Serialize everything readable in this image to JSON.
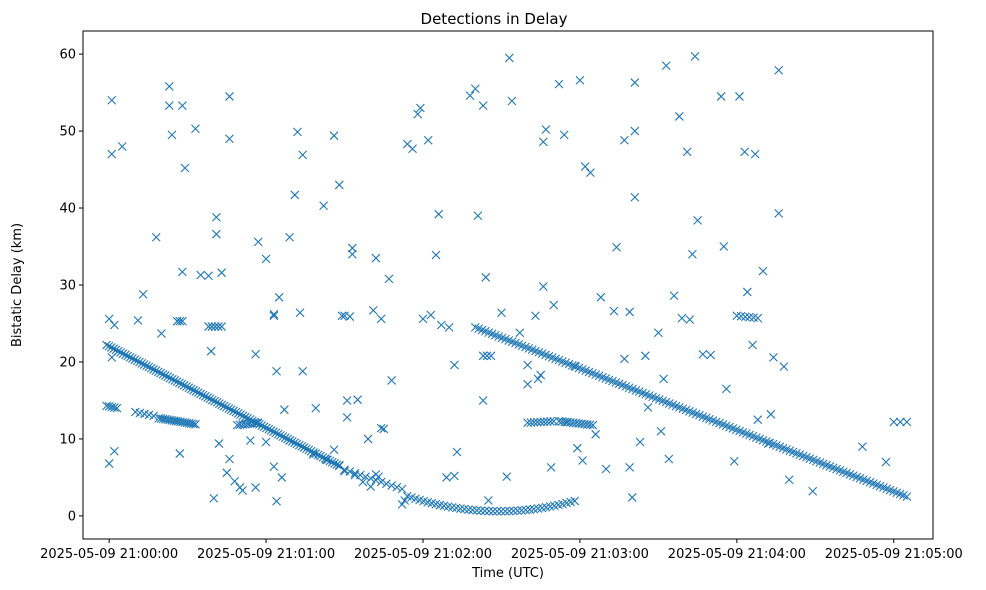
{
  "chart_data": {
    "type": "scatter",
    "title": "Detections in Delay",
    "xlabel": "Time (UTC)",
    "ylabel": "Bistatic Delay (km)",
    "marker": "x",
    "grid": false,
    "x_units": "seconds after 2025-05-09 21:00:00",
    "xlim": [
      -10,
      315
    ],
    "ylim": [
      -3,
      63
    ],
    "x_ticks": [
      {
        "value": 0,
        "label": "2025-05-09 21:00:00"
      },
      {
        "value": 60,
        "label": "2025-05-09 21:01:00"
      },
      {
        "value": 120,
        "label": "2025-05-09 21:02:00"
      },
      {
        "value": 180,
        "label": "2025-05-09 21:03:00"
      },
      {
        "value": 240,
        "label": "2025-05-09 21:04:00"
      },
      {
        "value": 300,
        "label": "2025-05-09 21:05:00"
      }
    ],
    "y_ticks": [
      {
        "value": 0,
        "label": "0"
      },
      {
        "value": 10,
        "label": "10"
      },
      {
        "value": 20,
        "label": "20"
      },
      {
        "value": 30,
        "label": "30"
      },
      {
        "value": 40,
        "label": "40"
      },
      {
        "value": 50,
        "label": "50"
      },
      {
        "value": 60,
        "label": "60"
      }
    ],
    "series": [
      {
        "name": "Detections",
        "color": "#1f77b4",
        "tracks": [
          {
            "kind": "line",
            "x_start": -1,
            "y_start": 22.2,
            "x_end": 88,
            "y_end": 6.5,
            "count": 100
          },
          {
            "kind": "line",
            "x_start": 90,
            "y_start": 6,
            "x_end": 112,
            "y_end": 3.5,
            "count": 12
          },
          {
            "kind": "curve",
            "x_start": 114,
            "x_end": 178,
            "x_mid": 149,
            "y_mid": 0.6,
            "k": 0.0016,
            "count": 42
          },
          {
            "kind": "line",
            "x_start": 140,
            "y_start": 24.5,
            "x_end": 305,
            "y_end": 2.5,
            "count": 130
          },
          {
            "kind": "line",
            "x_start": -1,
            "y_start": 14.3,
            "x_end": 3,
            "y_end": 14,
            "count": 5
          },
          {
            "kind": "line",
            "x_start": 10,
            "y_start": 13.5,
            "x_end": 17,
            "y_end": 13,
            "count": 5
          },
          {
            "kind": "line",
            "x_start": 19,
            "y_start": 12.7,
            "x_end": 33,
            "y_end": 11.9,
            "count": 18
          },
          {
            "kind": "line",
            "x_start": 49,
            "y_start": 11.8,
            "x_end": 57,
            "y_end": 12.1,
            "count": 9
          },
          {
            "kind": "line",
            "x_start": 160,
            "y_start": 12.1,
            "x_end": 170,
            "y_end": 12.3,
            "count": 9
          },
          {
            "kind": "line",
            "x_start": 172,
            "y_start": 12.3,
            "x_end": 185,
            "y_end": 11.8,
            "count": 13
          },
          {
            "kind": "line",
            "x_start": 26,
            "y_start": 25.3,
            "x_end": 28,
            "y_end": 25.3,
            "count": 3
          },
          {
            "kind": "line",
            "x_start": 38,
            "y_start": 24.6,
            "x_end": 43,
            "y_end": 24.6,
            "count": 5
          },
          {
            "kind": "line",
            "x_start": 143,
            "y_start": 20.8,
            "x_end": 146,
            "y_end": 20.8,
            "count": 3
          },
          {
            "kind": "line",
            "x_start": 240,
            "y_start": 26,
            "x_end": 248,
            "y_end": 25.7,
            "count": 6
          },
          {
            "kind": "line",
            "x_start": 300,
            "y_start": 12.2,
            "x_end": 305,
            "y_end": 12.2,
            "count": 3
          }
        ],
        "points": [
          [
            1,
            47
          ],
          [
            1,
            54
          ],
          [
            5,
            48
          ],
          [
            18,
            36.2
          ],
          [
            23,
            53.3
          ],
          [
            23,
            55.8
          ],
          [
            24,
            49.5
          ],
          [
            28,
            53.3
          ],
          [
            29,
            45.2
          ],
          [
            33,
            50.3
          ],
          [
            35,
            31.3
          ],
          [
            38,
            31.2
          ],
          [
            41,
            38.8
          ],
          [
            41,
            36.6
          ],
          [
            43,
            31.6
          ],
          [
            46,
            54.5
          ],
          [
            46,
            49
          ],
          [
            54,
            9.8
          ],
          [
            57,
            35.6
          ],
          [
            60,
            33.4
          ],
          [
            64,
            18.8
          ],
          [
            65,
            28.4
          ],
          [
            69,
            36.2
          ],
          [
            71,
            41.7
          ],
          [
            72,
            49.9
          ],
          [
            74,
            46.9
          ],
          [
            78,
            8
          ],
          [
            82,
            40.3
          ],
          [
            86,
            49.4
          ],
          [
            88,
            43
          ],
          [
            90,
            5.8
          ],
          [
            93,
            34
          ],
          [
            93,
            34.8
          ],
          [
            99,
            10
          ],
          [
            101,
            26.7
          ],
          [
            102,
            33.5
          ],
          [
            104,
            25.6
          ],
          [
            105,
            11.3
          ],
          [
            107,
            30.8
          ],
          [
            108,
            17.6
          ],
          [
            114,
            48.3
          ],
          [
            116,
            47.7
          ],
          [
            118,
            52.2
          ],
          [
            119,
            53
          ],
          [
            122,
            48.8
          ],
          [
            125,
            33.9
          ],
          [
            126,
            39.2
          ],
          [
            132,
            5.2
          ],
          [
            133,
            8.3
          ],
          [
            138,
            54.6
          ],
          [
            140,
            55.5
          ],
          [
            141,
            39
          ],
          [
            143,
            53.3
          ],
          [
            144,
            31
          ],
          [
            152,
            5.1
          ],
          [
            153,
            59.5
          ],
          [
            154,
            53.9
          ],
          [
            160,
            17.1
          ],
          [
            164,
            17.8
          ],
          [
            166,
            48.6
          ],
          [
            167,
            50.2
          ],
          [
            169,
            6.3
          ],
          [
            170,
            27.4
          ],
          [
            172,
            56.1
          ],
          [
            174,
            49.5
          ],
          [
            179,
            8.8
          ],
          [
            180,
            56.6
          ],
          [
            182,
            45.4
          ],
          [
            184,
            44.6
          ],
          [
            186,
            10.6
          ],
          [
            188,
            28.4
          ],
          [
            190,
            6.1
          ],
          [
            194,
            34.9
          ],
          [
            197,
            48.8
          ],
          [
            199,
            6.3
          ],
          [
            200,
            2.4
          ],
          [
            201,
            41.4
          ],
          [
            201,
            56.3
          ],
          [
            201,
            50
          ],
          [
            203,
            9.6
          ],
          [
            205,
            20.8
          ],
          [
            210,
            23.8
          ],
          [
            212,
            17.8
          ],
          [
            213,
            58.5
          ],
          [
            216,
            28.6
          ],
          [
            218,
            51.9
          ],
          [
            221,
            47.3
          ],
          [
            223,
            34
          ],
          [
            224,
            59.7
          ],
          [
            225,
            38.4
          ],
          [
            227,
            21
          ],
          [
            234,
            54.5
          ],
          [
            235,
            35
          ],
          [
            241,
            54.5
          ],
          [
            243,
            47.3
          ],
          [
            244,
            29.1
          ],
          [
            247,
            47
          ],
          [
            246,
            22.2
          ],
          [
            250,
            31.8
          ],
          [
            253,
            13.2
          ],
          [
            254,
            20.6
          ],
          [
            256,
            57.9
          ],
          [
            256,
            39.3
          ],
          [
            258,
            19.4
          ],
          [
            0,
            25.6
          ],
          [
            2,
            24.8
          ],
          [
            1,
            20.6
          ],
          [
            2,
            8.4
          ],
          [
            0,
            6.8
          ],
          [
            11,
            25.4
          ],
          [
            13,
            28.8
          ],
          [
            20,
            23.7
          ],
          [
            27,
            8.1
          ],
          [
            28,
            31.7
          ],
          [
            39,
            21.4
          ],
          [
            40,
            2.3
          ],
          [
            42,
            9.4
          ],
          [
            45,
            5.6
          ],
          [
            46,
            7.4
          ],
          [
            48,
            4.5
          ],
          [
            50,
            3.7
          ],
          [
            51,
            3.3
          ],
          [
            56,
            21
          ],
          [
            56,
            3.7
          ],
          [
            60,
            9.6
          ],
          [
            63,
            26
          ],
          [
            63,
            26.2
          ],
          [
            63,
            6.4
          ],
          [
            64,
            1.9
          ],
          [
            66,
            5
          ],
          [
            67,
            13.8
          ],
          [
            69,
            9.8
          ],
          [
            73,
            26.4
          ],
          [
            74,
            18.8
          ],
          [
            79,
            14
          ],
          [
            83,
            7.3
          ],
          [
            86,
            8.6
          ],
          [
            88,
            6.6
          ],
          [
            89,
            26
          ],
          [
            90,
            26
          ],
          [
            91,
            15
          ],
          [
            91,
            12.8
          ],
          [
            92,
            25.9
          ],
          [
            94,
            5.3
          ],
          [
            95,
            15.1
          ],
          [
            97,
            4.4
          ],
          [
            100,
            3.8
          ],
          [
            102,
            5.4
          ],
          [
            103,
            5.1
          ],
          [
            104,
            11.4
          ],
          [
            112,
            1.5
          ],
          [
            113,
            2
          ],
          [
            120,
            25.6
          ],
          [
            123,
            26.1
          ],
          [
            127,
            24.8
          ],
          [
            129,
            5
          ],
          [
            130,
            24.5
          ],
          [
            132,
            19.6
          ],
          [
            143,
            15
          ],
          [
            145,
            2
          ],
          [
            150,
            26.4
          ],
          [
            157,
            23.8
          ],
          [
            160,
            19.6
          ],
          [
            163,
            26
          ],
          [
            165,
            18.3
          ],
          [
            166,
            29.8
          ],
          [
            175,
            12.2
          ],
          [
            178,
            19.5
          ],
          [
            181,
            7.2
          ],
          [
            193,
            26.6
          ],
          [
            197,
            20.4
          ],
          [
            199,
            26.5
          ],
          [
            206,
            14.1
          ],
          [
            211,
            11
          ],
          [
            214,
            7.4
          ],
          [
            219,
            25.7
          ],
          [
            222,
            25.5
          ],
          [
            230,
            20.9
          ],
          [
            236,
            16.5
          ],
          [
            239,
            7.1
          ],
          [
            248,
            12.5
          ],
          [
            252,
            9.4
          ],
          [
            260,
            4.7
          ],
          [
            269,
            3.2
          ],
          [
            288,
            9
          ],
          [
            297,
            7
          ]
        ]
      }
    ]
  }
}
